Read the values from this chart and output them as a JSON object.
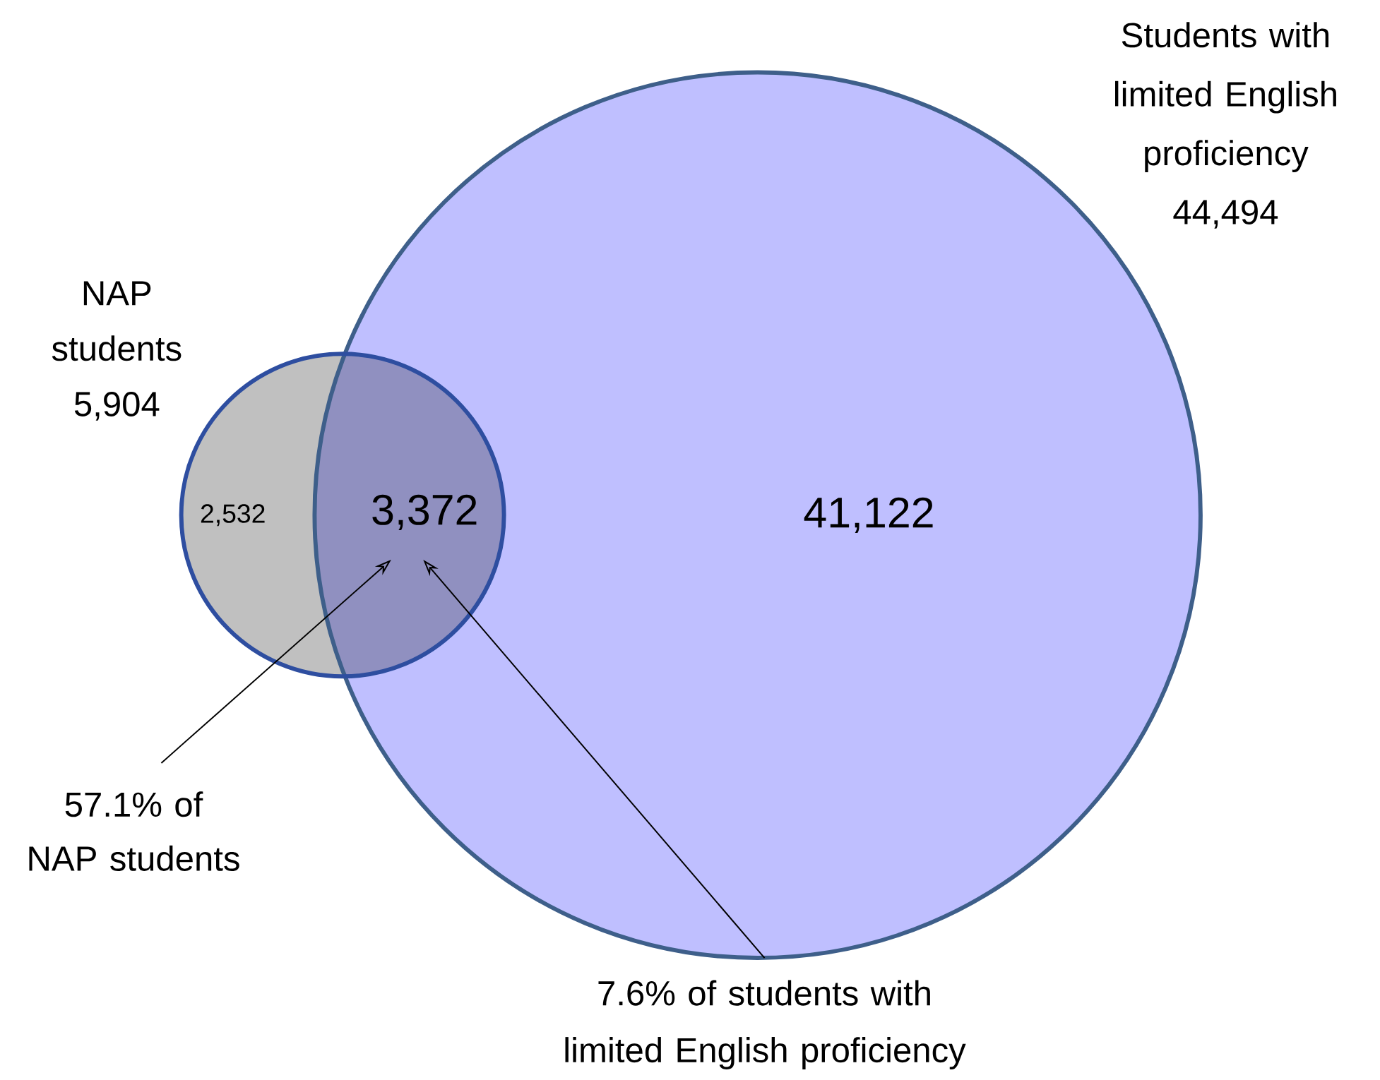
{
  "chart_data": {
    "type": "other",
    "categories": [
      "NAP students",
      "Students with limited English proficiency"
    ],
    "values": [
      5904,
      44494
    ],
    "value_labels": [
      "5,904",
      "44,494"
    ],
    "colors": [
      "#c0c0c0",
      "#bfbfff"
    ],
    "annotations": [
      "2,532",
      "3,372",
      "41,122",
      "57.1% of NAP students",
      "7.6% of students with limited English proficiency"
    ]
  }
}
